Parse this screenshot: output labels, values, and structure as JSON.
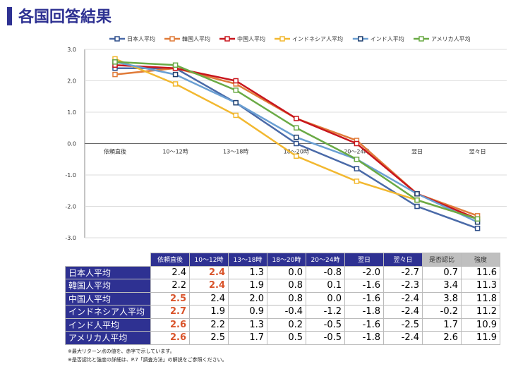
{
  "title": "各国回答結果",
  "chart_data": {
    "type": "line",
    "categories": [
      "依頼直後",
      "10～12時",
      "13～18時",
      "18～20時",
      "20～24時",
      "翌日",
      "翌々日"
    ],
    "ylim": [
      -3.0,
      3.0
    ],
    "yticks": [
      "3.0",
      "2.0",
      "1.0",
      "0.0",
      "-1.0",
      "-2.0",
      "-3.0"
    ],
    "grid": true,
    "legend": "top",
    "series": [
      {
        "name": "日本人平均",
        "color": "#4a6aa8",
        "marker": "#2f4f8a",
        "values": [
          2.4,
          2.4,
          1.3,
          0.0,
          -0.8,
          -2.0,
          -2.7
        ]
      },
      {
        "name": "韓国人平均",
        "color": "#e07b39",
        "marker": "#e07b39",
        "values": [
          2.2,
          2.4,
          1.9,
          0.8,
          0.1,
          -1.6,
          -2.3
        ]
      },
      {
        "name": "中国人平均",
        "color": "#c8161d",
        "marker": "#c8161d",
        "values": [
          2.5,
          2.4,
          2.0,
          0.8,
          0.0,
          -1.6,
          -2.4
        ]
      },
      {
        "name": "インドネシア人平均",
        "color": "#f2b830",
        "marker": "#f2b830",
        "values": [
          2.7,
          1.9,
          0.9,
          -0.4,
          -1.2,
          -1.8,
          -2.4
        ]
      },
      {
        "name": "インド人平均",
        "color": "#6a9fd3",
        "marker": "#1f3f6e",
        "values": [
          2.6,
          2.2,
          1.3,
          0.2,
          -0.5,
          -1.6,
          -2.5
        ]
      },
      {
        "name": "アメリカ人平均",
        "color": "#6aaa45",
        "marker": "#6aaa45",
        "values": [
          2.6,
          2.5,
          1.7,
          0.5,
          -0.5,
          -1.8,
          -2.4
        ]
      }
    ]
  },
  "table": {
    "headers": [
      "依頼直後",
      "10～12時",
      "13～18時",
      "18～20時",
      "20～24時",
      "翌日",
      "翌々日",
      "是否認比",
      "強度"
    ],
    "rows": [
      {
        "label": "日本人平均",
        "values": [
          "2.4",
          "2.4",
          "1.3",
          "0.0",
          "-0.8",
          "-2.0",
          "-2.7",
          "0.7",
          "11.6"
        ],
        "red": [
          1
        ]
      },
      {
        "label": "韓国人平均",
        "values": [
          "2.2",
          "2.4",
          "1.9",
          "0.8",
          "0.1",
          "-1.6",
          "-2.3",
          "3.4",
          "11.3"
        ],
        "red": [
          1
        ]
      },
      {
        "label": "中国人平均",
        "values": [
          "2.5",
          "2.4",
          "2.0",
          "0.8",
          "0.0",
          "-1.6",
          "-2.4",
          "3.8",
          "11.8"
        ],
        "red": [
          0
        ]
      },
      {
        "label": "インドネシア人平均",
        "values": [
          "2.7",
          "1.9",
          "0.9",
          "-0.4",
          "-1.2",
          "-1.8",
          "-2.4",
          "-0.2",
          "11.2"
        ],
        "red": [
          0
        ]
      },
      {
        "label": "インド人平均",
        "values": [
          "2.6",
          "2.2",
          "1.3",
          "0.2",
          "-0.5",
          "-1.6",
          "-2.5",
          "1.7",
          "10.9"
        ],
        "red": [
          0
        ]
      },
      {
        "label": "アメリカ人平均",
        "values": [
          "2.6",
          "2.5",
          "1.7",
          "0.5",
          "-0.5",
          "-1.8",
          "-2.4",
          "2.6",
          "11.9"
        ],
        "red": [
          0
        ]
      }
    ]
  },
  "notes": [
    "※最大リターン点の値を、赤字で示しています。",
    "※是否認比と強度の詳細は、P.7「調査方法」の解説をご参照ください。"
  ]
}
